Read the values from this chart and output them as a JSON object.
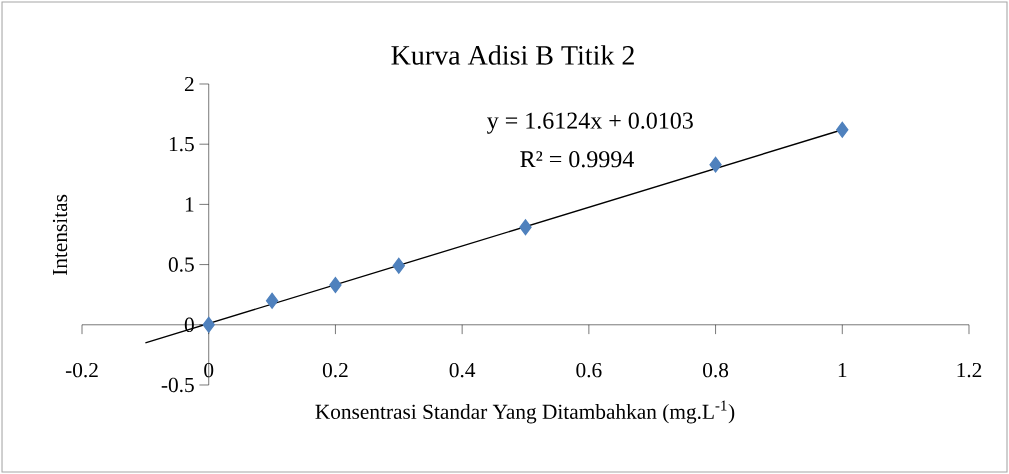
{
  "chart_data": {
    "type": "scatter",
    "title": "Kurva Adisi B Titik 2",
    "xlabel": "Konsentrasi Standar Yang Ditambahkan (mg.L$^{-1}$)",
    "ylabel": "Intensitas",
    "series": [
      {
        "color": "#4f81bd",
        "marker": "diamond",
        "x": [
          0,
          0.1,
          0.2,
          0.3,
          0.5,
          0.8,
          1
        ],
        "values": [
          0,
          0.2,
          0.33,
          0.49,
          0.81,
          1.33,
          1.62
        ]
      },
      {
        "type": "line",
        "color": "#000000",
        "marker": "none",
        "x": [
          -0.1,
          1
        ],
        "values": [
          -0.15,
          1.62
        ]
      }
    ],
    "annotations": [
      "y = 1.6124x + 0.0103",
      "R² = 0.9994"
    ],
    "xlim": [
      -0.2,
      1.2
    ],
    "ylim": [
      -0.5,
      2
    ],
    "xticks": [
      -0.2,
      0,
      0.2,
      0.4,
      0.6,
      0.8,
      1,
      1.2
    ],
    "yticks": [
      -0.5,
      0,
      0.5,
      1,
      1.5,
      2
    ]
  }
}
